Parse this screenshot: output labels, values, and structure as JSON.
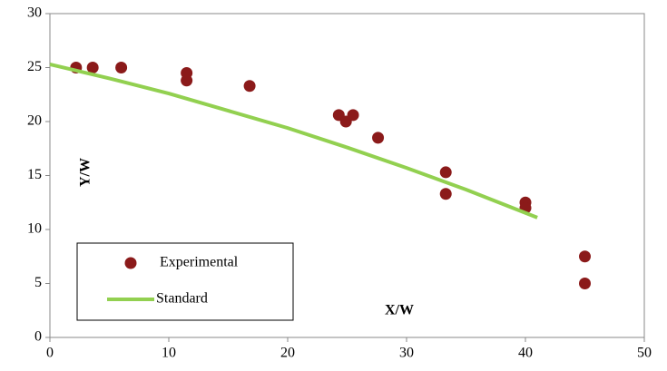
{
  "chart_data": {
    "type": "scatter",
    "x_label": "X/W",
    "y_label": "Y/W",
    "xlim": [
      0,
      50
    ],
    "xticks": [
      0,
      10,
      20,
      30,
      40,
      50
    ],
    "ylim": [
      0,
      30
    ],
    "yticks": [
      0,
      5,
      10,
      15,
      20,
      25,
      30
    ],
    "grid": false,
    "legend": "lower left",
    "series": [
      {
        "name": "Experimental",
        "type": "scatter",
        "color": "#8b1a1a",
        "x": [
          2.2,
          3.6,
          6.0,
          11.5,
          11.5,
          16.8,
          24.3,
          24.9,
          25.5,
          27.6,
          33.3,
          33.3,
          40,
          40,
          45,
          45
        ],
        "values": [
          25,
          25,
          25,
          24.5,
          23.8,
          23.3,
          20.6,
          20.0,
          20.6,
          18.5,
          15.3,
          13.3,
          12.5,
          12.0,
          7.5,
          5.0
        ]
      },
      {
        "name": "Standard",
        "type": "line",
        "color": "#92d050",
        "x": [
          0,
          5,
          10,
          15,
          20,
          25,
          30,
          35,
          41
        ],
        "values": [
          25.3,
          24.0,
          22.6,
          21.0,
          19.4,
          17.6,
          15.7,
          13.7,
          11.1
        ]
      }
    ]
  }
}
